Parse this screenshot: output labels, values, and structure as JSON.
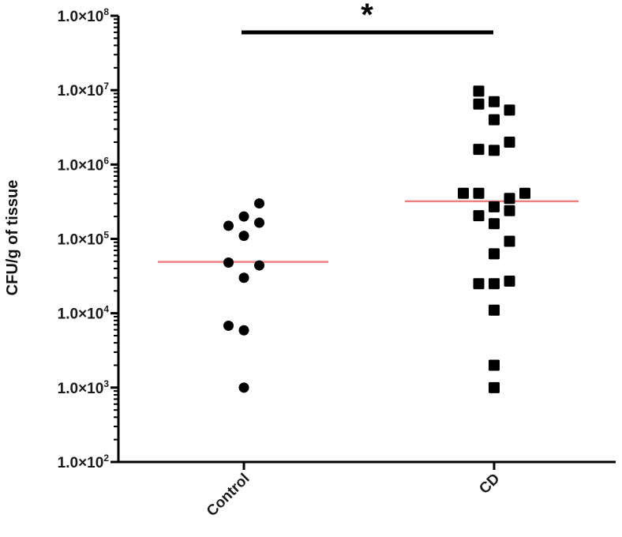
{
  "chart_data": {
    "type": "scatter",
    "subtype": "dot-plot with median lines",
    "title": "",
    "ylabel": "CFU/g of tissue",
    "xlabel": "",
    "yscale": "log",
    "ylim": [
      100,
      100000000
    ],
    "y_ticks": [
      {
        "value": 100,
        "label": "1.0×10",
        "exp": "2"
      },
      {
        "value": 1000,
        "label": "1.0×10",
        "exp": "3"
      },
      {
        "value": 10000,
        "label": "1.0×10",
        "exp": "4"
      },
      {
        "value": 100000,
        "label": "1.0×10",
        "exp": "5"
      },
      {
        "value": 1000000,
        "label": "1.0×10",
        "exp": "6"
      },
      {
        "value": 10000000,
        "label": "1.0×10",
        "exp": "7"
      },
      {
        "value": 100000000,
        "label": "1.0×10",
        "exp": "8"
      }
    ],
    "categories": [
      "Control",
      "CD"
    ],
    "grid": false,
    "legend": null,
    "series": [
      {
        "name": "Control",
        "marker": "circle",
        "color": "#000000",
        "median": 49000,
        "points": [
          {
            "x_offset": 1,
            "value": 300000
          },
          {
            "x_offset": 0,
            "value": 200000
          },
          {
            "x_offset": -1,
            "value": 150000
          },
          {
            "x_offset": 1,
            "value": 165000
          },
          {
            "x_offset": 0,
            "value": 110000
          },
          {
            "x_offset": -1,
            "value": 48000
          },
          {
            "x_offset": 1,
            "value": 44000
          },
          {
            "x_offset": 0,
            "value": 30000
          },
          {
            "x_offset": -1,
            "value": 6800
          },
          {
            "x_offset": 0,
            "value": 5900
          },
          {
            "x_offset": 0,
            "value": 1000
          }
        ]
      },
      {
        "name": "CD",
        "marker": "square",
        "color": "#000000",
        "median": 320000,
        "points": [
          {
            "x_offset": -1,
            "value": 9700000
          },
          {
            "x_offset": -1,
            "value": 6500000
          },
          {
            "x_offset": 0,
            "value": 7000000
          },
          {
            "x_offset": 1,
            "value": 5400000
          },
          {
            "x_offset": 0,
            "value": 4000000
          },
          {
            "x_offset": 1,
            "value": 2000000
          },
          {
            "x_offset": -1,
            "value": 1600000
          },
          {
            "x_offset": 0,
            "value": 1550000
          },
          {
            "x_offset": -2,
            "value": 410000
          },
          {
            "x_offset": -1,
            "value": 410000
          },
          {
            "x_offset": 2,
            "value": 410000
          },
          {
            "x_offset": 1,
            "value": 350000
          },
          {
            "x_offset": 0,
            "value": 270000
          },
          {
            "x_offset": 1,
            "value": 240000
          },
          {
            "x_offset": -1,
            "value": 205000
          },
          {
            "x_offset": 0,
            "value": 160000
          },
          {
            "x_offset": 1,
            "value": 93000
          },
          {
            "x_offset": 0,
            "value": 63000
          },
          {
            "x_offset": 1,
            "value": 27000
          },
          {
            "x_offset": -1,
            "value": 25000
          },
          {
            "x_offset": 0,
            "value": 25000
          },
          {
            "x_offset": 0,
            "value": 11000
          },
          {
            "x_offset": 0,
            "value": 2000
          },
          {
            "x_offset": 0,
            "value": 1000
          }
        ]
      }
    ],
    "median_line_color": "#f08080",
    "annotations": [
      {
        "type": "significance-bar",
        "from": "Control",
        "to": "CD",
        "label": "*"
      }
    ]
  }
}
